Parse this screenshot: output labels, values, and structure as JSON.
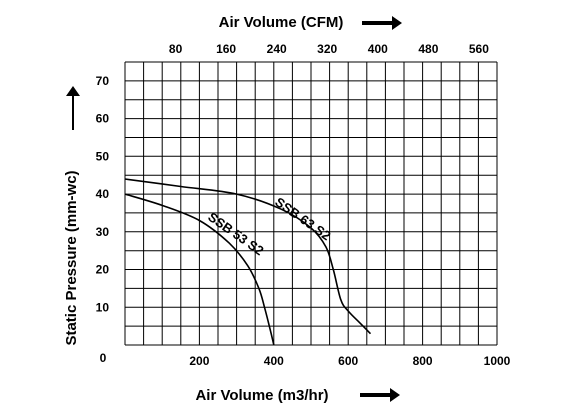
{
  "chart_data": {
    "type": "line",
    "top_axis": {
      "label": "Air Volume (CFM)",
      "ticks": [
        80,
        160,
        240,
        320,
        400,
        480,
        560
      ]
    },
    "x_axis": {
      "label": "Air Volume (m3/hr)",
      "range": [
        0,
        1000
      ],
      "ticks": [
        200,
        400,
        600,
        800,
        1000
      ],
      "zero_label": "0"
    },
    "y_axis": {
      "label": "Static Pressure (mm-wc)",
      "range": [
        0,
        75
      ],
      "ticks": [
        10,
        20,
        30,
        40,
        50,
        60,
        70
      ]
    },
    "grid": true,
    "series": [
      {
        "name": "SSB 53 S2",
        "x": [
          0,
          100,
          200,
          280,
          330,
          360,
          375,
          388,
          400
        ],
        "y": [
          40,
          37,
          33,
          27,
          21,
          15,
          10,
          5,
          0
        ]
      },
      {
        "name": "SSB 63 S2",
        "x": [
          0,
          150,
          300,
          420,
          500,
          540,
          560,
          580,
          600,
          630,
          660
        ],
        "y": [
          44,
          42,
          40,
          36,
          31,
          26,
          20,
          12,
          9,
          6,
          3
        ]
      }
    ]
  }
}
